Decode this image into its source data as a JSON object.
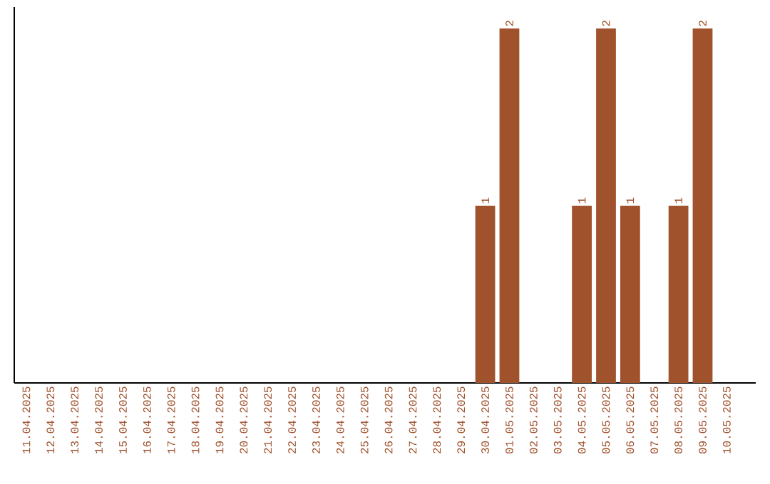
{
  "chart_data": {
    "type": "bar",
    "categories": [
      "11.04.2025",
      "12.04.2025",
      "13.04.2025",
      "14.04.2025",
      "15.04.2025",
      "16.04.2025",
      "17.04.2025",
      "18.04.2025",
      "19.04.2025",
      "20.04.2025",
      "21.04.2025",
      "22.04.2025",
      "23.04.2025",
      "24.04.2025",
      "25.04.2025",
      "26.04.2025",
      "27.04.2025",
      "28.04.2025",
      "29.04.2025",
      "30.04.2025",
      "01.05.2025",
      "02.05.2025",
      "03.05.2025",
      "04.05.2025",
      "05.05.2025",
      "06.05.2025",
      "07.05.2025",
      "08.05.2025",
      "09.05.2025",
      "10.05.2025"
    ],
    "values": [
      null,
      null,
      null,
      null,
      null,
      null,
      null,
      null,
      null,
      null,
      null,
      null,
      null,
      null,
      null,
      null,
      null,
      null,
      null,
      1,
      2,
      null,
      null,
      1,
      2,
      1,
      null,
      1,
      2,
      null
    ],
    "data_labels": true,
    "ylim": [
      0,
      2.12
    ],
    "color": "#a0522d",
    "tick_labels": "x"
  }
}
